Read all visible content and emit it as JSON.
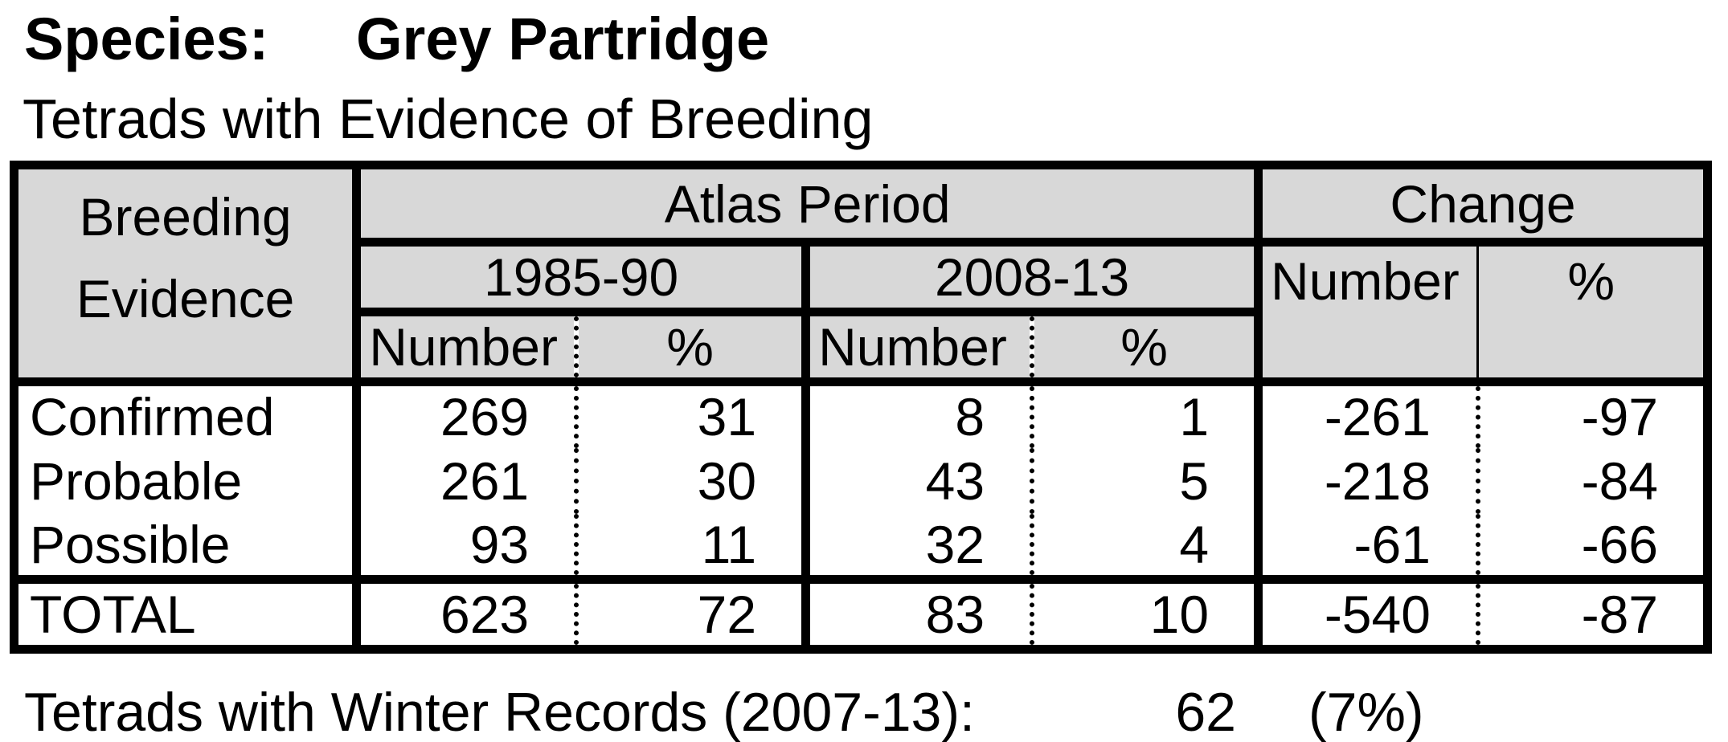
{
  "page": {
    "species_label": "Species:",
    "species_value": "Grey Partridge",
    "subtitle": "Tetrads with Evidence of Breeding",
    "footer": {
      "label": "Tetrads with Winter Records (2007-13):",
      "value": "62",
      "percent": "(7%)"
    }
  },
  "table": {
    "corner_header_line1": "Breeding",
    "corner_header_line2": "Evidence",
    "group_headers": {
      "atlas": "Atlas Period",
      "change": "Change"
    },
    "period_headers": {
      "first": "1985-90",
      "second": "2008-13"
    },
    "sub_headers": {
      "number": "Number",
      "percent": "%"
    },
    "rows": [
      {
        "label": "Confirmed",
        "n85": "269",
        "p85": "31",
        "n08": "8",
        "p08": "1",
        "nch": "-261",
        "pch": "-97"
      },
      {
        "label": "Probable",
        "n85": "261",
        "p85": "30",
        "n08": "43",
        "p08": "5",
        "nch": "-218",
        "pch": "-84"
      },
      {
        "label": "Possible",
        "n85": "93",
        "p85": "11",
        "n08": "32",
        "p08": "4",
        "nch": "-61",
        "pch": "-66"
      }
    ],
    "total_row": {
      "label": "TOTAL",
      "n85": "623",
      "p85": "72",
      "n08": "83",
      "p08": "10",
      "nch": "-540",
      "pch": "-87"
    }
  },
  "colors": {
    "header_background": "#d8d8d8",
    "border": "#000000",
    "text": "#000000",
    "page_background": "#ffffff"
  }
}
